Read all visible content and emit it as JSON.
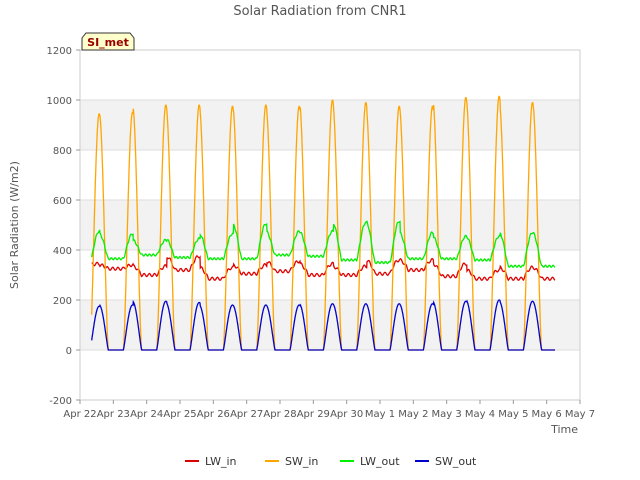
{
  "chart_data": {
    "type": "line",
    "title": "Solar Radiation from CNR1",
    "xlabel": "Time",
    "ylabel": "Solar Radiation (W/m2)",
    "station_badge": "SI_met",
    "ylim": [
      -200,
      1200
    ],
    "yticks": [
      -200,
      0,
      200,
      400,
      600,
      800,
      1000,
      1200
    ],
    "ytick_labels": [
      "-200",
      "0",
      "200",
      "400",
      "600",
      "800",
      "1000",
      "1200"
    ],
    "xlim": [
      0,
      15
    ],
    "xticks": [
      0,
      1,
      2,
      3,
      4,
      5,
      6,
      7,
      8,
      9,
      10,
      11,
      12,
      13,
      14,
      15
    ],
    "xtick_labels": [
      "Apr 22",
      "Apr 23",
      "Apr 24",
      "Apr 25",
      "Apr 26",
      "Apr 27",
      "Apr 28",
      "Apr 29",
      "Apr 30",
      "May 1",
      "May 2",
      "May 3",
      "May 4",
      "May 5",
      "May 6",
      "May 7"
    ],
    "x_unit": "days since Apr 22",
    "days": [
      "Apr 22",
      "Apr 23",
      "Apr 24",
      "Apr 25",
      "Apr 26",
      "Apr 27",
      "Apr 28",
      "Apr 29",
      "Apr 30",
      "May 1",
      "May 2",
      "May 3",
      "May 4",
      "May 5"
    ],
    "grid": true,
    "legend_position": "bottom",
    "series": [
      {
        "name": "LW_in",
        "color": "#dd0000",
        "night_base": [
          340,
          325,
          300,
          320,
          285,
          305,
          315,
          300,
          300,
          305,
          320,
          295,
          285,
          285
        ],
        "day_peak": [
          345,
          340,
          335,
          375,
          330,
          340,
          355,
          345,
          335,
          360,
          360,
          345,
          320,
          330
        ]
      },
      {
        "name": "SW_in",
        "color": "#ffa500",
        "daily_peak": [
          945,
          950,
          980,
          980,
          975,
          980,
          975,
          1000,
          990,
          975,
          975,
          1010,
          1015,
          990
        ]
      },
      {
        "name": "LW_out",
        "color": "#00ee00",
        "night_base": [
          345,
          365,
          380,
          370,
          365,
          365,
          380,
          375,
          360,
          350,
          365,
          365,
          360,
          335
        ],
        "day_peak": [
          475,
          465,
          440,
          445,
          465,
          505,
          475,
          475,
          510,
          515,
          470,
          455,
          455,
          470
        ]
      },
      {
        "name": "SW_out",
        "color": "#0000cc",
        "daily_peak": [
          175,
          180,
          195,
          190,
          180,
          180,
          180,
          185,
          185,
          185,
          185,
          195,
          200,
          195
        ]
      }
    ]
  }
}
